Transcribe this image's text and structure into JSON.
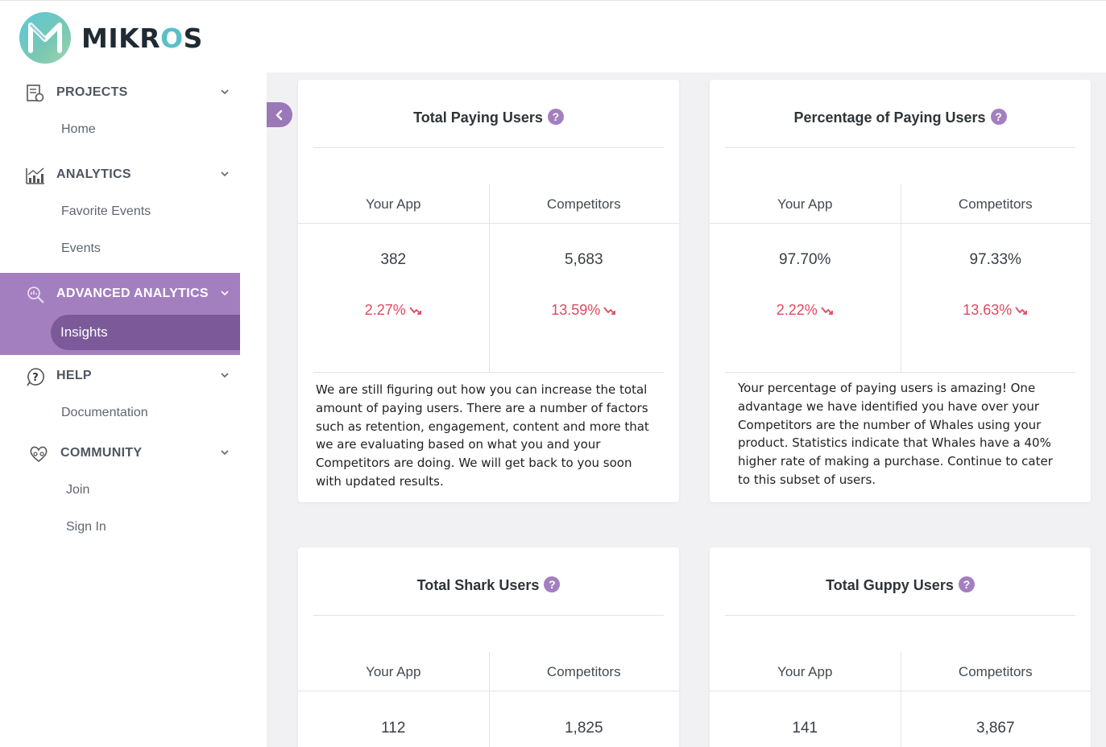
{
  "brand": {
    "name_start": "MIKR",
    "name_o": "O",
    "name_end": "S"
  },
  "sidebar": {
    "sections": [
      {
        "label": "PROJECTS",
        "items": [
          "Home"
        ]
      },
      {
        "label": "ANALYTICS",
        "items": [
          "Favorite Events",
          "Events"
        ]
      },
      {
        "label": "ADVANCED ANALYTICS",
        "items": [
          "Insights"
        ]
      },
      {
        "label": "HELP",
        "items": [
          "Documentation"
        ]
      },
      {
        "label": "COMMUNITY",
        "items": [
          "Join",
          "Sign In"
        ]
      }
    ],
    "active_item": "Insights",
    "accent": "#a37fc0",
    "active_bg": "#7c5a99"
  },
  "cards": [
    {
      "title": "Total Paying Users",
      "your_app_label": "Your App",
      "competitors_label": "Competitors",
      "your_app_value": "382",
      "competitors_value": "5,683",
      "your_app_change": "2.27%",
      "competitors_change": "13.59%",
      "description": "We are still figuring out how you can increase the total amount of paying users. There are a number of factors such as retention, engagement, content and more that we are evaluating based on what you and your Competitors are doing. We will get back to you soon with updated results."
    },
    {
      "title": "Percentage of Paying Users",
      "your_app_label": "Your App",
      "competitors_label": "Competitors",
      "your_app_value": "97.70%",
      "competitors_value": "97.33%",
      "your_app_change": "2.22%",
      "competitors_change": "13.63%",
      "description": "Your percentage of paying users is amazing! One advantage we have identified you have over your Competitors are the number of Whales using your product. Statistics indicate that Whales have a 40% higher rate of making a purchase. Continue to cater to this subset of users."
    },
    {
      "title": "Total Shark Users",
      "your_app_label": "Your App",
      "competitors_label": "Competitors",
      "your_app_value": "112",
      "competitors_value": "1,825"
    },
    {
      "title": "Total Guppy Users",
      "your_app_label": "Your App",
      "competitors_label": "Competitors",
      "your_app_value": "141",
      "competitors_value": "3,867"
    }
  ],
  "colors": {
    "negative": "#e0495f",
    "help_badge": "#a37fc0"
  },
  "icons": {
    "help_badge": "?",
    "trend_down": "trend-down-icon",
    "collapse": "chevron-left-icon"
  }
}
